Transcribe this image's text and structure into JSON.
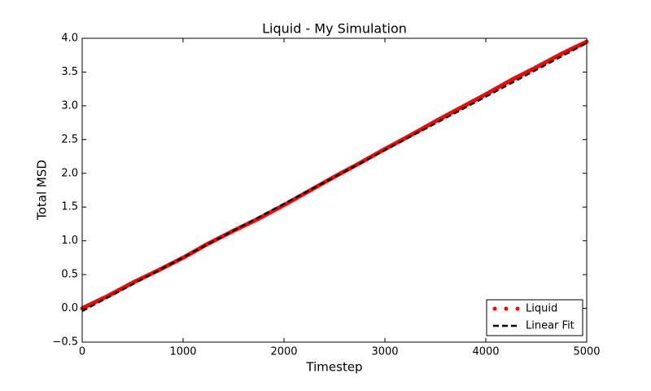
{
  "chart_data": {
    "type": "line",
    "title": "Liquid - My Simulation",
    "x_label": "Timestep",
    "y_label": "Total MSD",
    "series": [
      {
        "name": "Liquid",
        "color": "#ff0000",
        "style": "dotted",
        "x": [
          0,
          250,
          500,
          750,
          1000,
          1250,
          1500,
          1750,
          2000,
          2250,
          2500,
          2750,
          3000,
          3250,
          3500,
          3750,
          4000,
          4250,
          4500,
          4750,
          5000
        ],
        "values": [
          0.0,
          0.18,
          0.38,
          0.56,
          0.75,
          0.96,
          1.15,
          1.33,
          1.53,
          1.74,
          1.95,
          2.15,
          2.36,
          2.56,
          2.77,
          2.97,
          3.17,
          3.38,
          3.57,
          3.77,
          3.95
        ]
      },
      {
        "name": "Linear Fit",
        "color": "#000000",
        "style": "dashed",
        "x": [
          0,
          5000
        ],
        "values": [
          -0.04,
          3.93
        ]
      }
    ],
    "xlim": [
      0,
      5000
    ],
    "xticks": [
      0,
      1000,
      2000,
      3000,
      4000,
      5000
    ],
    "ylim": [
      -0.5,
      4.0
    ],
    "yticks": [
      {
        "value": -0.5,
        "label": "−0.5"
      },
      {
        "value": 0,
        "label": "0.0"
      },
      0.5,
      {
        "value": 1,
        "label": "1.0"
      },
      1.5,
      {
        "value": 2,
        "label": "2.0"
      },
      2.5,
      {
        "value": 3,
        "label": "3.0"
      },
      3.5,
      {
        "value": 4,
        "label": "4.0"
      }
    ],
    "legend": "lower right",
    "grid": false
  }
}
